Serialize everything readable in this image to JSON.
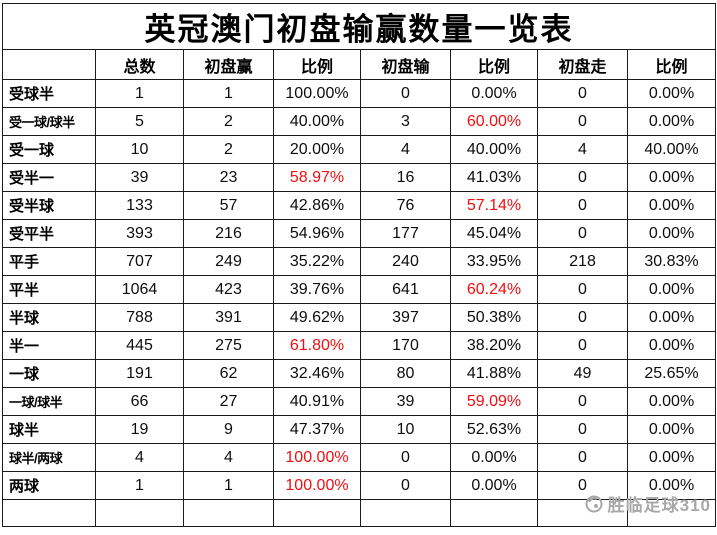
{
  "chart_data": {
    "type": "table",
    "title": "英冠澳门初盘输赢数量一览表",
    "columns": [
      "",
      "总数",
      "初盘赢",
      "比例",
      "初盘输",
      "比例",
      "初盘走",
      "比例"
    ],
    "rows": [
      {
        "cells": [
          "受球半",
          "1",
          "1",
          "100.00%",
          "0",
          "0.00%",
          "0",
          "0.00%"
        ],
        "red_cells": []
      },
      {
        "cells": [
          "受一球/球半",
          "5",
          "2",
          "40.00%",
          "3",
          "60.00%",
          "0",
          "0.00%"
        ],
        "red_cells": [
          5
        ]
      },
      {
        "cells": [
          "受一球",
          "10",
          "2",
          "20.00%",
          "4",
          "40.00%",
          "4",
          "40.00%"
        ],
        "red_cells": []
      },
      {
        "cells": [
          "受半一",
          "39",
          "23",
          "58.97%",
          "16",
          "41.03%",
          "0",
          "0.00%"
        ],
        "red_cells": [
          3
        ]
      },
      {
        "cells": [
          "受半球",
          "133",
          "57",
          "42.86%",
          "76",
          "57.14%",
          "0",
          "0.00%"
        ],
        "red_cells": [
          5
        ]
      },
      {
        "cells": [
          "受平半",
          "393",
          "216",
          "54.96%",
          "177",
          "45.04%",
          "0",
          "0.00%"
        ],
        "red_cells": []
      },
      {
        "cells": [
          "平手",
          "707",
          "249",
          "35.22%",
          "240",
          "33.95%",
          "218",
          "30.83%"
        ],
        "red_cells": []
      },
      {
        "cells": [
          "平半",
          "1064",
          "423",
          "39.76%",
          "641",
          "60.24%",
          "0",
          "0.00%"
        ],
        "red_cells": [
          5
        ]
      },
      {
        "cells": [
          "半球",
          "788",
          "391",
          "49.62%",
          "397",
          "50.38%",
          "0",
          "0.00%"
        ],
        "red_cells": []
      },
      {
        "cells": [
          "半一",
          "445",
          "275",
          "61.80%",
          "170",
          "38.20%",
          "0",
          "0.00%"
        ],
        "red_cells": [
          3
        ]
      },
      {
        "cells": [
          "一球",
          "191",
          "62",
          "32.46%",
          "80",
          "41.88%",
          "49",
          "25.65%"
        ],
        "red_cells": []
      },
      {
        "cells": [
          "一球/球半",
          "66",
          "27",
          "40.91%",
          "39",
          "59.09%",
          "0",
          "0.00%"
        ],
        "red_cells": [
          5
        ]
      },
      {
        "cells": [
          "球半",
          "19",
          "9",
          "47.37%",
          "10",
          "52.63%",
          "0",
          "0.00%"
        ],
        "red_cells": []
      },
      {
        "cells": [
          "球半/两球",
          "4",
          "4",
          "100.00%",
          "0",
          "0.00%",
          "0",
          "0.00%"
        ],
        "red_cells": [
          3
        ]
      },
      {
        "cells": [
          "两球",
          "1",
          "1",
          "100.00%",
          "0",
          "0.00%",
          "0",
          "0.00%"
        ],
        "red_cells": [
          3
        ]
      }
    ],
    "layout_hints": {
      "grid": true,
      "text_color": "#000000",
      "highlight_color": "#f10e10",
      "empty_footer_row": true
    }
  },
  "watermark": {
    "text": "胜临足球310",
    "color": "#a8a8a8"
  }
}
